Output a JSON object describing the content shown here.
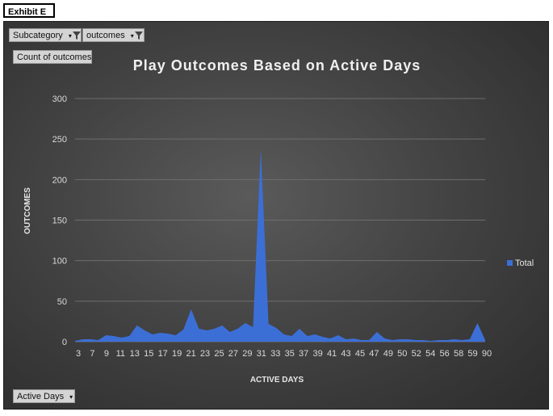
{
  "exhibit_label": "Exhibit E",
  "filters": {
    "subcategory": "Subcategory",
    "outcomes": "outcomes"
  },
  "value_field": "Count of outcomes",
  "axis_field": "Active Days",
  "colors": {
    "area": "#3c6fd6",
    "grid": "#6e6e6e"
  },
  "chart_data": {
    "type": "area",
    "title": "Play Outcomes Based on Active Days",
    "xlabel": "ACTIVE DAYS",
    "ylabel": "OUTCOMES",
    "ylim": [
      0,
      300
    ],
    "yticks": [
      0,
      50,
      100,
      150,
      200,
      250,
      300
    ],
    "x_tick_labels": [
      "3",
      "7",
      "9",
      "11",
      "13",
      "15",
      "17",
      "19",
      "21",
      "23",
      "25",
      "27",
      "29",
      "31",
      "33",
      "35",
      "37",
      "39",
      "41",
      "43",
      "45",
      "47",
      "49",
      "50",
      "52",
      "54",
      "56",
      "58",
      "59",
      "90"
    ],
    "legend": "right",
    "series": [
      {
        "name": "Total",
        "values": [
          1,
          3,
          3,
          2,
          8,
          7,
          5,
          7,
          20,
          14,
          9,
          11,
          10,
          8,
          15,
          40,
          16,
          14,
          16,
          20,
          12,
          16,
          23,
          18,
          238,
          22,
          17,
          9,
          7,
          16,
          7,
          9,
          6,
          4,
          8,
          3,
          4,
          2,
          2,
          12,
          4,
          2,
          3,
          3,
          2,
          2,
          1,
          2,
          2,
          3,
          2,
          3,
          23,
          2
        ]
      }
    ]
  }
}
